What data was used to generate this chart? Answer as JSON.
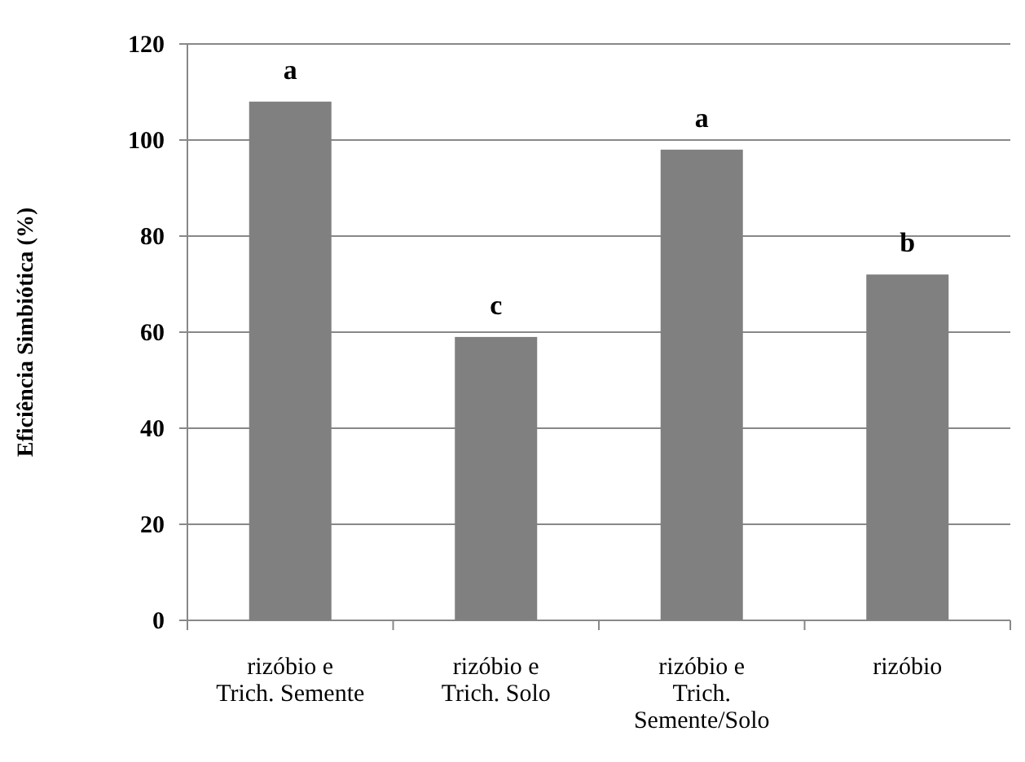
{
  "chart_data": {
    "type": "bar",
    "ylabel": "Eficiência Simbiótica (%)",
    "categories": [
      "rizóbio e Trich. Semente",
      "rizóbio e Trich. Solo",
      "rizóbio e Trich. Semente/Solo",
      "rizóbio"
    ],
    "values": [
      108,
      59,
      98,
      72
    ],
    "color": "#808080",
    "ylim": [
      0,
      120
    ],
    "yticks": [
      0,
      20,
      40,
      60,
      80,
      100,
      120
    ],
    "grid": "y",
    "annotations": [
      {
        "text": "a",
        "x": "rizóbio e Trich. Semente",
        "y": 108
      },
      {
        "text": "c",
        "x": "rizóbio e Trich. Solo",
        "y": 59
      },
      {
        "text": "a",
        "x": "rizóbio e Trich. Semente/Solo",
        "y": 98
      },
      {
        "text": "b",
        "x": "rizóbio",
        "y": 72
      }
    ]
  }
}
